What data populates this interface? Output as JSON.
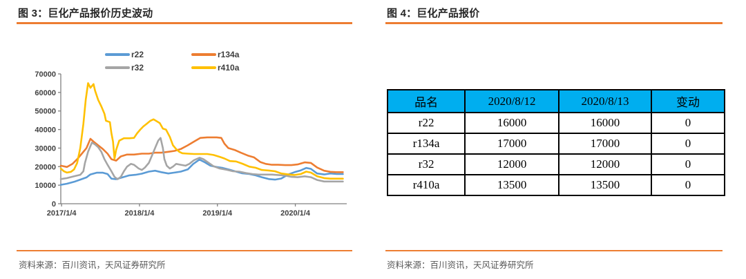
{
  "colors": {
    "accent": "#ED7D31",
    "title_text": "#262626",
    "source_text": "#595959",
    "table_header_bg": "#00AEEF",
    "table_border": "#000000",
    "axis_line": "#808080",
    "tick_text": "#404040"
  },
  "panels": {
    "left": {
      "source": "资料来源：百川资讯，天风证券研究所"
    },
    "right": {
      "source": "资料来源：百川资讯，天风证券研究所"
    }
  },
  "chart_data": [
    {
      "type": "line",
      "title": "图 3：巨化产品报价历史波动",
      "xlabel": "",
      "ylabel": "",
      "grid": false,
      "legend_position": "top",
      "xlim": [
        2017.0,
        2020.67
      ],
      "ylim": [
        0,
        70000
      ],
      "yticks": [
        0,
        10000,
        20000,
        30000,
        40000,
        50000,
        60000,
        70000
      ],
      "xticks": [
        {
          "x": 2017.01,
          "label": "2017/1/4"
        },
        {
          "x": 2018.01,
          "label": "2018/1/4"
        },
        {
          "x": 2019.01,
          "label": "2019/1/4"
        },
        {
          "x": 2020.01,
          "label": "2020/1/4"
        }
      ],
      "series": [
        {
          "name": "r22",
          "color": "#5B9BD5",
          "points": [
            [
              2017.0,
              10200
            ],
            [
              2017.08,
              10800
            ],
            [
              2017.17,
              11800
            ],
            [
              2017.25,
              13000
            ],
            [
              2017.33,
              14200
            ],
            [
              2017.38,
              15800
            ],
            [
              2017.46,
              16700
            ],
            [
              2017.54,
              16700
            ],
            [
              2017.6,
              16000
            ],
            [
              2017.65,
              13500
            ],
            [
              2017.71,
              13200
            ],
            [
              2017.79,
              14200
            ],
            [
              2017.88,
              15300
            ],
            [
              2017.96,
              15600
            ],
            [
              2018.04,
              16200
            ],
            [
              2018.13,
              17300
            ],
            [
              2018.21,
              17800
            ],
            [
              2018.29,
              17000
            ],
            [
              2018.38,
              16300
            ],
            [
              2018.46,
              16800
            ],
            [
              2018.54,
              17300
            ],
            [
              2018.63,
              18500
            ],
            [
              2018.7,
              21500
            ],
            [
              2018.78,
              23800
            ],
            [
              2018.85,
              22300
            ],
            [
              2018.92,
              20500
            ],
            [
              2019.0,
              19800
            ],
            [
              2019.08,
              19300
            ],
            [
              2019.17,
              18300
            ],
            [
              2019.25,
              17300
            ],
            [
              2019.33,
              16400
            ],
            [
              2019.42,
              16000
            ],
            [
              2019.5,
              15300
            ],
            [
              2019.58,
              14300
            ],
            [
              2019.67,
              13300
            ],
            [
              2019.75,
              13000
            ],
            [
              2019.83,
              13600
            ],
            [
              2019.92,
              15800
            ],
            [
              2020.0,
              17000
            ],
            [
              2020.08,
              18000
            ],
            [
              2020.15,
              19300
            ],
            [
              2020.21,
              18800
            ],
            [
              2020.29,
              16300
            ],
            [
              2020.38,
              15800
            ],
            [
              2020.46,
              16300
            ],
            [
              2020.54,
              16000
            ],
            [
              2020.62,
              16000
            ]
          ]
        },
        {
          "name": "r134a",
          "color": "#ED7D31",
          "points": [
            [
              2017.0,
              20500
            ],
            [
              2017.08,
              19800
            ],
            [
              2017.15,
              21500
            ],
            [
              2017.21,
              24000
            ],
            [
              2017.27,
              27000
            ],
            [
              2017.33,
              30000
            ],
            [
              2017.38,
              35000
            ],
            [
              2017.42,
              33500
            ],
            [
              2017.48,
              31500
            ],
            [
              2017.54,
              29500
            ],
            [
              2017.6,
              27000
            ],
            [
              2017.65,
              24000
            ],
            [
              2017.71,
              23200
            ],
            [
              2017.77,
              25500
            ],
            [
              2017.85,
              26500
            ],
            [
              2017.94,
              26500
            ],
            [
              2018.04,
              27000
            ],
            [
              2018.13,
              27000
            ],
            [
              2018.21,
              27500
            ],
            [
              2018.29,
              27500
            ],
            [
              2018.38,
              28000
            ],
            [
              2018.46,
              28500
            ],
            [
              2018.54,
              29500
            ],
            [
              2018.63,
              31500
            ],
            [
              2018.71,
              33500
            ],
            [
              2018.79,
              35500
            ],
            [
              2018.88,
              35800
            ],
            [
              2019.0,
              35800
            ],
            [
              2019.06,
              35500
            ],
            [
              2019.1,
              32400
            ],
            [
              2019.15,
              30000
            ],
            [
              2019.23,
              29000
            ],
            [
              2019.31,
              27500
            ],
            [
              2019.4,
              26000
            ],
            [
              2019.48,
              25000
            ],
            [
              2019.56,
              22500
            ],
            [
              2019.63,
              21500
            ],
            [
              2019.71,
              21000
            ],
            [
              2019.79,
              21000
            ],
            [
              2019.88,
              20800
            ],
            [
              2019.96,
              20800
            ],
            [
              2020.04,
              21200
            ],
            [
              2020.13,
              22300
            ],
            [
              2020.21,
              22000
            ],
            [
              2020.29,
              19500
            ],
            [
              2020.38,
              17800
            ],
            [
              2020.46,
              17200
            ],
            [
              2020.54,
              17000
            ],
            [
              2020.62,
              17000
            ]
          ]
        },
        {
          "name": "r32",
          "color": "#A5A5A5",
          "points": [
            [
              2017.0,
              13300
            ],
            [
              2017.08,
              13800
            ],
            [
              2017.17,
              14800
            ],
            [
              2017.25,
              15600
            ],
            [
              2017.29,
              17500
            ],
            [
              2017.31,
              22000
            ],
            [
              2017.35,
              28000
            ],
            [
              2017.4,
              33000
            ],
            [
              2017.44,
              32000
            ],
            [
              2017.48,
              30500
            ],
            [
              2017.52,
              28000
            ],
            [
              2017.56,
              24000
            ],
            [
              2017.6,
              21000
            ],
            [
              2017.65,
              17500
            ],
            [
              2017.69,
              14500
            ],
            [
              2017.73,
              13200
            ],
            [
              2017.77,
              14500
            ],
            [
              2017.81,
              17500
            ],
            [
              2017.85,
              20000
            ],
            [
              2017.9,
              21500
            ],
            [
              2017.94,
              21000
            ],
            [
              2018.0,
              19000
            ],
            [
              2018.04,
              18200
            ],
            [
              2018.08,
              19500
            ],
            [
              2018.13,
              22000
            ],
            [
              2018.17,
              26000
            ],
            [
              2018.21,
              30000
            ],
            [
              2018.25,
              34000
            ],
            [
              2018.28,
              35500
            ],
            [
              2018.31,
              30000
            ],
            [
              2018.33,
              24000
            ],
            [
              2018.36,
              20500
            ],
            [
              2018.4,
              19000
            ],
            [
              2018.44,
              20000
            ],
            [
              2018.48,
              21500
            ],
            [
              2018.54,
              21000
            ],
            [
              2018.6,
              20500
            ],
            [
              2018.65,
              21500
            ],
            [
              2018.71,
              23500
            ],
            [
              2018.78,
              24800
            ],
            [
              2018.83,
              24000
            ],
            [
              2018.9,
              22000
            ],
            [
              2018.96,
              20200
            ],
            [
              2019.04,
              19000
            ],
            [
              2019.13,
              18300
            ],
            [
              2019.21,
              17500
            ],
            [
              2019.29,
              17300
            ],
            [
              2019.38,
              16500
            ],
            [
              2019.46,
              16000
            ],
            [
              2019.54,
              15700
            ],
            [
              2019.63,
              15700
            ],
            [
              2019.71,
              15700
            ],
            [
              2019.79,
              15500
            ],
            [
              2019.88,
              15200
            ],
            [
              2019.96,
              14500
            ],
            [
              2020.04,
              14300
            ],
            [
              2020.13,
              14800
            ],
            [
              2020.21,
              14300
            ],
            [
              2020.29,
              12800
            ],
            [
              2020.38,
              12000
            ],
            [
              2020.46,
              12000
            ],
            [
              2020.54,
              12000
            ],
            [
              2020.62,
              12000
            ]
          ]
        },
        {
          "name": "r410a",
          "color": "#FFC000",
          "points": [
            [
              2017.0,
              19000
            ],
            [
              2017.04,
              17500
            ],
            [
              2017.08,
              16800
            ],
            [
              2017.13,
              17200
            ],
            [
              2017.17,
              18500
            ],
            [
              2017.21,
              22000
            ],
            [
              2017.25,
              30000
            ],
            [
              2017.29,
              43000
            ],
            [
              2017.32,
              56000
            ],
            [
              2017.35,
              65000
            ],
            [
              2017.38,
              62500
            ],
            [
              2017.42,
              64500
            ],
            [
              2017.44,
              61000
            ],
            [
              2017.48,
              56000
            ],
            [
              2017.52,
              52500
            ],
            [
              2017.56,
              48500
            ],
            [
              2017.58,
              44700
            ],
            [
              2017.63,
              44000
            ],
            [
              2017.65,
              38000
            ],
            [
              2017.67,
              33500
            ],
            [
              2017.69,
              24200
            ],
            [
              2017.71,
              29000
            ],
            [
              2017.75,
              34000
            ],
            [
              2017.81,
              35300
            ],
            [
              2017.88,
              35300
            ],
            [
              2017.94,
              35500
            ],
            [
              2017.98,
              38000
            ],
            [
              2018.02,
              40000
            ],
            [
              2018.06,
              41700
            ],
            [
              2018.1,
              43000
            ],
            [
              2018.15,
              44700
            ],
            [
              2018.19,
              45500
            ],
            [
              2018.23,
              44500
            ],
            [
              2018.27,
              43500
            ],
            [
              2018.31,
              40500
            ],
            [
              2018.35,
              40000
            ],
            [
              2018.4,
              36000
            ],
            [
              2018.44,
              31500
            ],
            [
              2018.48,
              29500
            ],
            [
              2018.52,
              28000
            ],
            [
              2018.56,
              27200
            ],
            [
              2018.63,
              27000
            ],
            [
              2018.71,
              26800
            ],
            [
              2018.79,
              26800
            ],
            [
              2018.88,
              26800
            ],
            [
              2018.96,
              26300
            ],
            [
              2019.04,
              25300
            ],
            [
              2019.1,
              24400
            ],
            [
              2019.17,
              23000
            ],
            [
              2019.25,
              22800
            ],
            [
              2019.33,
              21600
            ],
            [
              2019.42,
              20000
            ],
            [
              2019.5,
              19400
            ],
            [
              2019.58,
              18200
            ],
            [
              2019.67,
              17900
            ],
            [
              2019.75,
              17500
            ],
            [
              2019.83,
              16300
            ],
            [
              2019.92,
              15800
            ],
            [
              2020.0,
              15500
            ],
            [
              2020.08,
              16000
            ],
            [
              2020.15,
              17300
            ],
            [
              2020.21,
              16800
            ],
            [
              2020.29,
              14800
            ],
            [
              2020.38,
              13800
            ],
            [
              2020.46,
              13500
            ],
            [
              2020.54,
              13500
            ],
            [
              2020.62,
              13500
            ]
          ]
        }
      ]
    },
    {
      "type": "table",
      "title": "图 4：巨化产品报价",
      "columns": [
        "品名",
        "2020/8/12",
        "2020/8/13",
        "变动"
      ],
      "rows": [
        [
          "r22",
          "16000",
          "16000",
          "0"
        ],
        [
          "r134a",
          "17000",
          "17000",
          "0"
        ],
        [
          "r32",
          "12000",
          "12000",
          "0"
        ],
        [
          "r410a",
          "13500",
          "13500",
          "0"
        ]
      ]
    }
  ]
}
